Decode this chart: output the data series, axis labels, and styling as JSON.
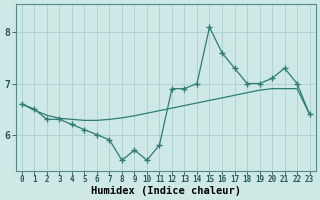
{
  "x": [
    0,
    1,
    2,
    3,
    4,
    5,
    6,
    7,
    8,
    9,
    10,
    11,
    12,
    13,
    14,
    15,
    16,
    17,
    18,
    19,
    20,
    21,
    22,
    23
  ],
  "y_line": [
    6.6,
    6.5,
    6.3,
    6.3,
    6.2,
    6.1,
    6.0,
    5.9,
    5.5,
    5.7,
    5.5,
    5.8,
    6.9,
    6.9,
    7.0,
    8.1,
    7.6,
    7.3,
    7.0,
    7.0,
    7.1,
    7.3,
    7.0,
    6.4
  ],
  "y_trend": [
    6.6,
    6.48,
    6.38,
    6.32,
    6.3,
    6.28,
    6.28,
    6.3,
    6.33,
    6.37,
    6.42,
    6.47,
    6.52,
    6.57,
    6.62,
    6.67,
    6.72,
    6.77,
    6.82,
    6.87,
    6.9,
    6.9,
    6.9,
    6.4
  ],
  "line_color": "#2e7d73",
  "bg_color": "#cde8e5",
  "grid_color": "#aecfcc",
  "ylabel_ticks": [
    6,
    7,
    8
  ],
  "xlabel": "Humidex (Indice chaleur)",
  "ylim": [
    5.3,
    8.55
  ],
  "xlim": [
    -0.5,
    23.5
  ],
  "tick_fontsize": 5.5,
  "xlabel_fontsize": 7.5
}
